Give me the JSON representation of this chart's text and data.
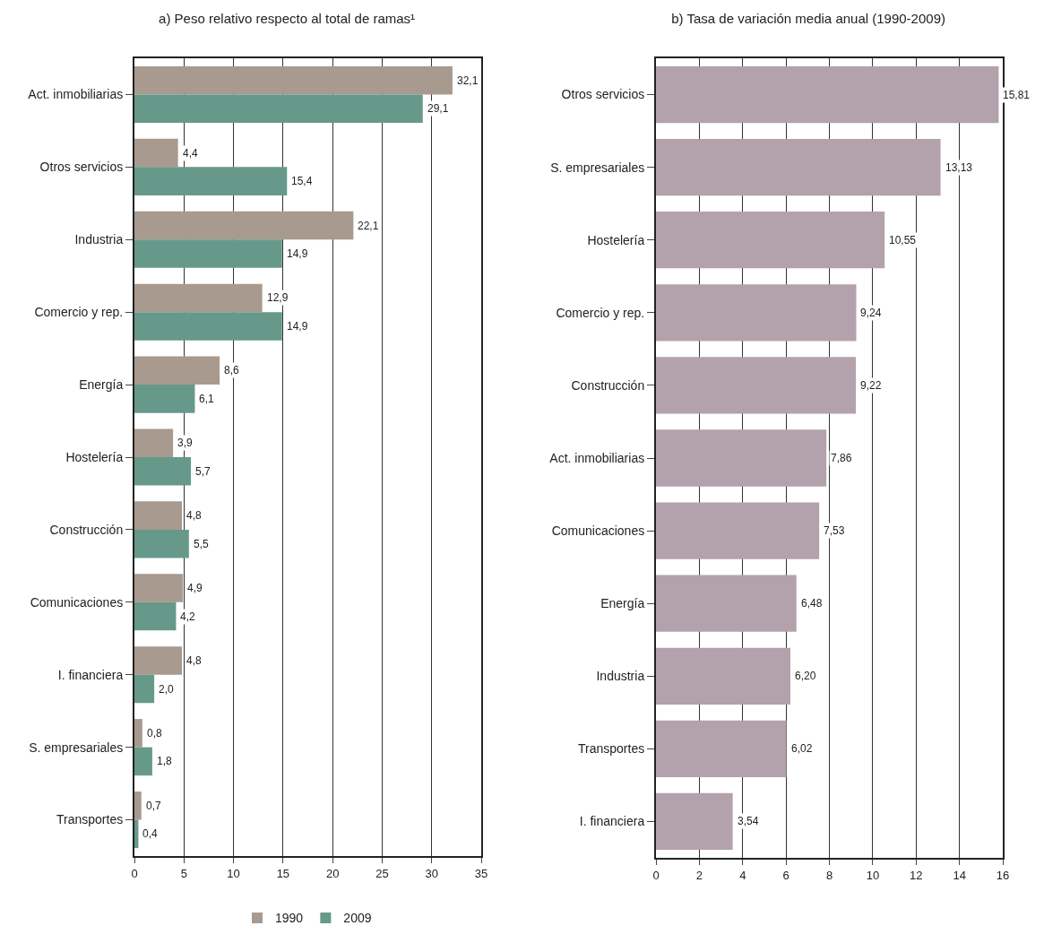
{
  "chart_data": [
    {
      "type": "bar",
      "orientation": "horizontal",
      "title": "a) Peso relativo respecto al total de ramas¹",
      "categories": [
        "Act. inmobiliarias",
        "Otros servicios",
        "Industria",
        "Comercio y rep.",
        "Energía",
        "Hostelería",
        "Construcción",
        "Comunicaciones",
        "I. financiera",
        "S. empresariales",
        "Transportes"
      ],
      "series": [
        {
          "name": "1990",
          "color": "#a89a8e",
          "values": [
            32.1,
            4.4,
            22.1,
            12.9,
            8.6,
            3.9,
            4.8,
            4.9,
            4.8,
            0.8,
            0.7
          ],
          "value_labels": [
            "32,1",
            "4,4",
            "22,1",
            "12,9",
            "8,6",
            "3,9",
            "4,8",
            "4,9",
            "4,8",
            "0,8",
            "0,7"
          ]
        },
        {
          "name": "2009",
          "color": "#66998a",
          "values": [
            29.1,
            15.4,
            14.9,
            14.9,
            6.1,
            5.7,
            5.5,
            4.2,
            2.0,
            1.8,
            0.4
          ],
          "value_labels": [
            "29,1",
            "15,4",
            "14,9",
            "14,9",
            "6,1",
            "5,7",
            "5,5",
            "4,2",
            "2,0",
            "1,8",
            "0,4"
          ]
        }
      ],
      "xlim": [
        0,
        35
      ],
      "xticks": [
        0,
        5,
        10,
        15,
        20,
        25,
        30,
        35
      ],
      "grid": "x",
      "legend": "bottom"
    },
    {
      "type": "bar",
      "orientation": "horizontal",
      "title": "b) Tasa de variación media anual (1990-2009)",
      "categories": [
        "Otros servicios",
        "S. empresariales",
        "Hostelería",
        "Comercio y rep.",
        "Construcción",
        "Act. inmobiliarias",
        "Comunicaciones",
        "Energía",
        "Industria",
        "Transportes",
        "I. financiera"
      ],
      "series": [
        {
          "color": "#b3a1ab",
          "values": [
            15.81,
            13.13,
            10.55,
            9.24,
            9.22,
            7.86,
            7.53,
            6.48,
            6.2,
            6.02,
            3.54
          ],
          "value_labels": [
            "15,81",
            "13,13",
            "10,55",
            "9,24",
            "9,22",
            "7,86",
            "7,53",
            "6,48",
            "6,20",
            "6,02",
            "3,54"
          ]
        }
      ],
      "xlim": [
        0,
        16
      ],
      "xticks": [
        0,
        2,
        4,
        6,
        8,
        10,
        12,
        14,
        16
      ],
      "grid": "x",
      "legend": false
    }
  ]
}
